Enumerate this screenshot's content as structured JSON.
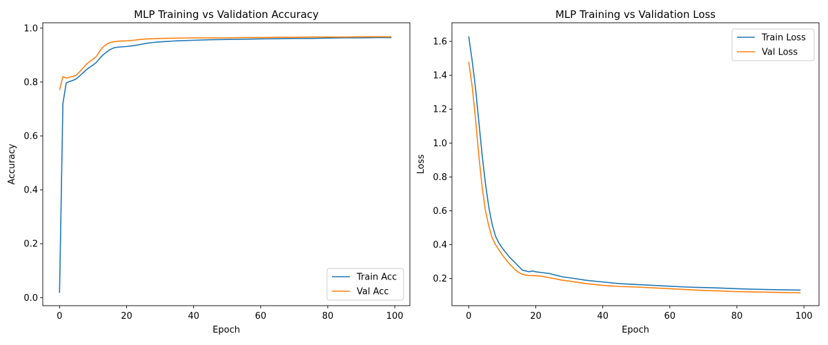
{
  "colors": {
    "train": "#1f77b4",
    "val": "#ff7f0e",
    "axes": "#000000",
    "legend_border": "#cccccc"
  },
  "chart_data": [
    {
      "type": "line",
      "title": "MLP Training vs Validation Accuracy",
      "xlabel": "Epoch",
      "ylabel": "Accuracy",
      "xlim": [
        -5,
        104.5
      ],
      "ylim": [
        -0.03,
        1.02
      ],
      "xticks": [
        0,
        20,
        40,
        60,
        80,
        100
      ],
      "xtick_labels": [
        "0",
        "20",
        "40",
        "60",
        "80",
        "100"
      ],
      "yticks": [
        0.0,
        0.2,
        0.4,
        0.6,
        0.8,
        1.0
      ],
      "ytick_labels": [
        "0.0",
        "0.2",
        "0.4",
        "0.6",
        "0.8",
        "1.0"
      ],
      "grid": false,
      "legend_position": "lower right",
      "series": [
        {
          "name": "Train Acc",
          "color_key": "train",
          "x": [
            0,
            1,
            2,
            3,
            4,
            5,
            6,
            7,
            8,
            9,
            10,
            11,
            12,
            13,
            14,
            15,
            16,
            17,
            18,
            19,
            20,
            22,
            24,
            26,
            28,
            30,
            35,
            40,
            45,
            50,
            55,
            60,
            65,
            70,
            75,
            80,
            85,
            90,
            95,
            99
          ],
          "y": [
            0.018,
            0.72,
            0.797,
            0.802,
            0.806,
            0.812,
            0.823,
            0.834,
            0.846,
            0.855,
            0.863,
            0.873,
            0.888,
            0.901,
            0.911,
            0.92,
            0.926,
            0.929,
            0.93,
            0.931,
            0.932,
            0.935,
            0.939,
            0.944,
            0.947,
            0.949,
            0.953,
            0.955,
            0.957,
            0.958,
            0.959,
            0.96,
            0.961,
            0.962,
            0.962,
            0.963,
            0.964,
            0.964,
            0.965,
            0.965
          ]
        },
        {
          "name": "Val Acc",
          "color_key": "val",
          "x": [
            0,
            1,
            2,
            3,
            4,
            5,
            6,
            7,
            8,
            9,
            10,
            11,
            12,
            13,
            14,
            15,
            16,
            17,
            18,
            20,
            22,
            24,
            26,
            28,
            30,
            35,
            40,
            45,
            50,
            55,
            60,
            65,
            70,
            75,
            80,
            85,
            90,
            95,
            99
          ],
          "y": [
            0.77,
            0.82,
            0.815,
            0.818,
            0.821,
            0.826,
            0.838,
            0.852,
            0.866,
            0.876,
            0.885,
            0.895,
            0.915,
            0.93,
            0.94,
            0.946,
            0.949,
            0.951,
            0.952,
            0.953,
            0.955,
            0.958,
            0.96,
            0.961,
            0.962,
            0.963,
            0.964,
            0.964,
            0.964,
            0.965,
            0.965,
            0.966,
            0.966,
            0.967,
            0.967,
            0.967,
            0.968,
            0.968,
            0.968
          ]
        }
      ]
    },
    {
      "type": "line",
      "title": "MLP Training vs Validation Loss",
      "xlabel": "Epoch",
      "ylabel": "Loss",
      "xlim": [
        -5,
        104.5
      ],
      "ylim": [
        0.04,
        1.71
      ],
      "xticks": [
        0,
        20,
        40,
        60,
        80,
        100
      ],
      "xtick_labels": [
        "0",
        "20",
        "40",
        "60",
        "80",
        "100"
      ],
      "yticks": [
        0.2,
        0.4,
        0.6,
        0.8,
        1.0,
        1.2,
        1.4,
        1.6
      ],
      "ytick_labels": [
        "0.2",
        "0.4",
        "0.6",
        "0.8",
        "1.0",
        "1.2",
        "1.4",
        "1.6"
      ],
      "grid": false,
      "legend_position": "upper right",
      "series": [
        {
          "name": "Train Loss",
          "color_key": "train",
          "x": [
            0,
            1,
            2,
            3,
            4,
            5,
            6,
            7,
            8,
            9,
            10,
            11,
            12,
            13,
            14,
            15,
            16,
            17,
            18,
            19,
            20,
            22,
            24,
            26,
            28,
            30,
            35,
            40,
            45,
            50,
            55,
            60,
            65,
            70,
            75,
            80,
            85,
            90,
            95,
            99
          ],
          "y": [
            1.63,
            1.49,
            1.33,
            1.13,
            0.93,
            0.76,
            0.62,
            0.52,
            0.45,
            0.41,
            0.38,
            0.355,
            0.33,
            0.31,
            0.29,
            0.27,
            0.25,
            0.245,
            0.24,
            0.245,
            0.24,
            0.235,
            0.23,
            0.22,
            0.21,
            0.205,
            0.19,
            0.18,
            0.17,
            0.165,
            0.16,
            0.155,
            0.15,
            0.147,
            0.144,
            0.14,
            0.137,
            0.135,
            0.133,
            0.132
          ]
        },
        {
          "name": "Val Loss",
          "color_key": "val",
          "x": [
            0,
            1,
            2,
            3,
            4,
            5,
            6,
            7,
            8,
            9,
            10,
            11,
            12,
            13,
            14,
            15,
            16,
            17,
            18,
            20,
            22,
            24,
            26,
            28,
            30,
            35,
            40,
            45,
            50,
            55,
            60,
            65,
            70,
            75,
            80,
            85,
            90,
            95,
            99
          ],
          "y": [
            1.48,
            1.34,
            1.15,
            0.93,
            0.74,
            0.6,
            0.51,
            0.44,
            0.4,
            0.37,
            0.34,
            0.315,
            0.29,
            0.27,
            0.25,
            0.235,
            0.225,
            0.22,
            0.218,
            0.217,
            0.213,
            0.205,
            0.198,
            0.19,
            0.185,
            0.17,
            0.16,
            0.153,
            0.15,
            0.145,
            0.14,
            0.135,
            0.13,
            0.127,
            0.123,
            0.121,
            0.119,
            0.117,
            0.116
          ]
        }
      ]
    }
  ]
}
